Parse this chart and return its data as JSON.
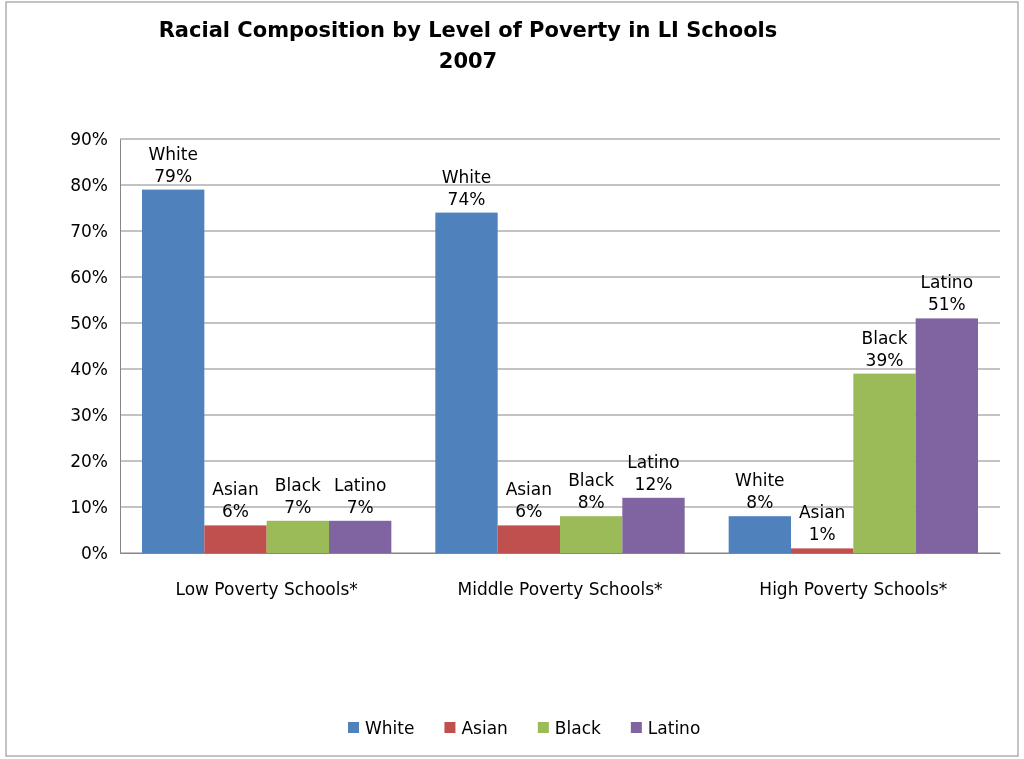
{
  "chart_data": {
    "type": "bar",
    "title": "Racial Composition by Level of Poverty in LI Schools\n2007",
    "categories": [
      "Low Poverty Schools*",
      "Middle Poverty Schools*",
      "High Poverty Schools*"
    ],
    "series": [
      {
        "name": "White",
        "color": "#4f81bd",
        "values": [
          79,
          74,
          8
        ],
        "value_labels": [
          "White 79%",
          "White 74%",
          "White 8%"
        ]
      },
      {
        "name": "Asian",
        "color": "#c0504d",
        "values": [
          6,
          6,
          1
        ],
        "value_labels": [
          "Asian 6%",
          "Asian 6%",
          "Asian 1%"
        ]
      },
      {
        "name": "Black",
        "color": "#9bbb59",
        "values": [
          7,
          8,
          39
        ],
        "value_labels": [
          "Black 7%",
          "Black 8%",
          "Black 39%"
        ]
      },
      {
        "name": "Latino",
        "color": "#8064a2",
        "values": [
          7,
          12,
          51
        ],
        "value_labels": [
          "Latino 7%",
          "Latino 12%",
          "Latino 51%"
        ]
      }
    ],
    "ylim": [
      0,
      90
    ],
    "yticks": [
      {
        "value": 0,
        "label": "0%"
      },
      {
        "value": 10,
        "label": "10%"
      },
      {
        "value": 20,
        "label": "20%"
      },
      {
        "value": 30,
        "label": "30%"
      },
      {
        "value": 40,
        "label": "40%"
      },
      {
        "value": 50,
        "label": "50%"
      },
      {
        "value": 60,
        "label": "60%"
      },
      {
        "value": 70,
        "label": "70%"
      },
      {
        "value": 80,
        "label": "80%"
      },
      {
        "value": 90,
        "label": "90%"
      }
    ],
    "grid": "y",
    "legend": "bottom"
  }
}
